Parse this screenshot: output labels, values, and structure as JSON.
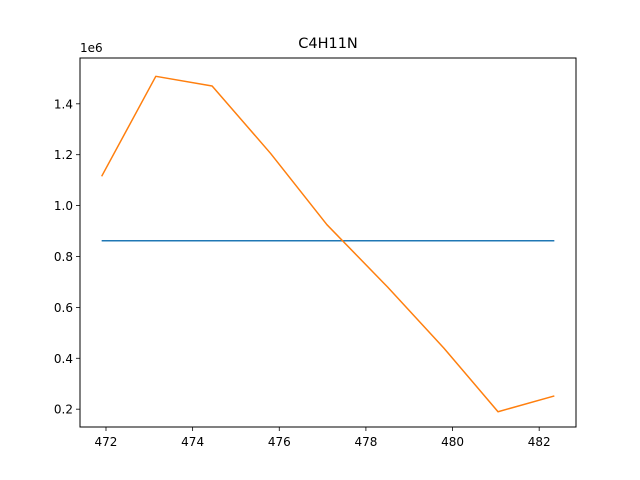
{
  "chart_data": {
    "type": "line",
    "title": "C4H11N",
    "xlabel": "",
    "ylabel": "",
    "y_offset_label": "1e6",
    "xlim": [
      471.4,
      482.85
    ],
    "ylim": [
      0.13,
      1.58
    ],
    "x_ticks": [
      472,
      474,
      476,
      478,
      480,
      482
    ],
    "y_ticks": [
      0.2,
      0.4,
      0.6,
      0.8,
      1.0,
      1.2,
      1.4
    ],
    "x_tick_labels": [
      "472",
      "474",
      "476",
      "478",
      "480",
      "482"
    ],
    "y_tick_labels": [
      "0.2",
      "0.4",
      "0.6",
      "0.8",
      "1.0",
      "1.2",
      "1.4"
    ],
    "grid": false,
    "series": [
      {
        "color": "#1f77b4",
        "x": [
          471.9,
          482.35
        ],
        "y": [
          0.862,
          0.862
        ]
      },
      {
        "color": "#ff7f0e",
        "x": [
          471.9,
          473.15,
          474.45,
          475.8,
          477.1,
          478.5,
          479.8,
          481.05,
          482.35
        ],
        "y": [
          1.115,
          1.508,
          1.47,
          1.205,
          0.925,
          0.68,
          0.44,
          0.19,
          0.252
        ]
      }
    ]
  }
}
